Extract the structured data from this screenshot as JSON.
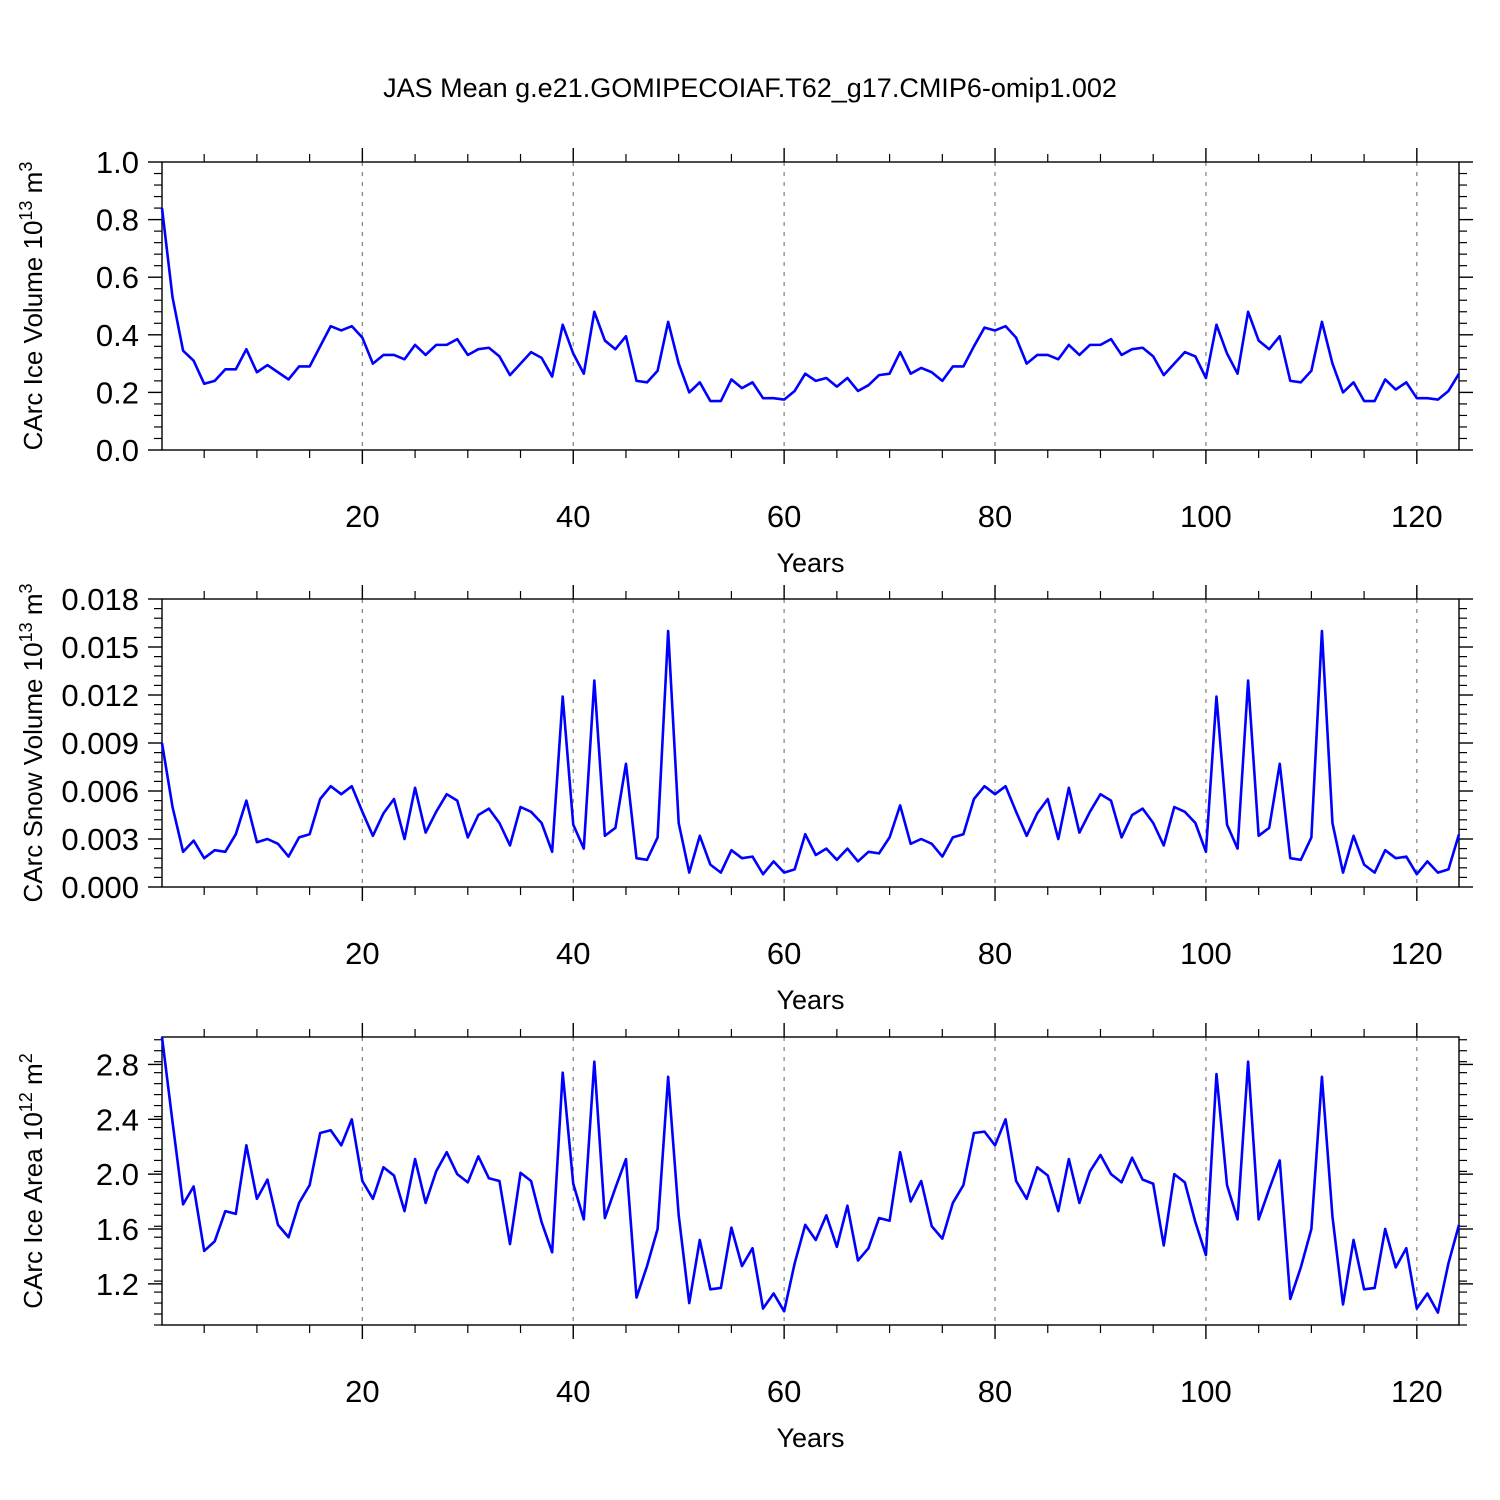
{
  "chart_data": [
    {
      "type": "line",
      "title": "JAS Mean g.e21.GOMIPECOIAF.T62_g17.CMIP6-omip1.002",
      "xlabel": "Years",
      "ylabel": "CArc Ice Volume 10",
      "ylabel_exp": "13",
      "ylabel_unit": " m",
      "ylabel_unit_exp": "3",
      "xlim": [
        1,
        124
      ],
      "ylim": [
        0,
        1.0
      ],
      "xticks": [
        20,
        40,
        60,
        80,
        100,
        120
      ],
      "yticks": [
        0,
        0.2,
        0.4,
        0.6,
        0.8,
        1.0
      ],
      "ytick_labels": [
        "0.0",
        "0.2",
        "0.4",
        "0.6",
        "0.8",
        "1.0"
      ],
      "grid": "dashed vertical at x ticks",
      "line_color": "#0000ff",
      "series": [
        {
          "name": "CArc Ice Volume",
          "values": [
            0.84,
            0.53,
            0.345,
            0.31,
            0.23,
            0.24,
            0.28,
            0.28,
            0.35,
            0.27,
            0.295,
            0.27,
            0.245,
            0.29,
            0.29,
            0.36,
            0.43,
            0.415,
            0.43,
            0.39,
            0.3,
            0.33,
            0.33,
            0.315,
            0.365,
            0.33,
            0.365,
            0.365,
            0.385,
            0.33,
            0.35,
            0.355,
            0.325,
            0.26,
            0.3,
            0.34,
            0.32,
            0.255,
            0.435,
            0.335,
            0.265,
            0.48,
            0.38,
            0.35,
            0.395,
            0.24,
            0.235,
            0.275,
            0.445,
            0.3,
            0.2,
            0.235,
            0.17,
            0.17,
            0.245,
            0.215,
            0.235,
            0.18,
            0.18,
            0.175,
            0.205,
            0.265,
            0.24,
            0.25,
            0.22,
            0.25,
            0.205,
            0.225,
            0.26,
            0.265,
            0.34,
            0.265,
            0.285,
            0.27,
            0.24,
            0.29,
            0.29,
            0.36,
            0.425,
            0.415,
            0.43,
            0.39,
            0.3,
            0.33,
            0.33,
            0.315,
            0.365,
            0.33,
            0.365,
            0.365,
            0.385,
            0.33,
            0.35,
            0.355,
            0.325,
            0.26,
            0.3,
            0.34,
            0.325,
            0.25,
            0.435,
            0.335,
            0.265,
            0.48,
            0.38,
            0.35,
            0.395,
            0.24,
            0.235,
            0.275,
            0.445,
            0.3,
            0.2,
            0.235,
            0.17,
            0.17,
            0.245,
            0.21,
            0.235,
            0.18,
            0.18,
            0.175,
            0.205,
            0.265
          ]
        }
      ]
    },
    {
      "type": "line",
      "title": "",
      "xlabel": "Years",
      "ylabel": "CArc Snow Volume 10",
      "ylabel_exp": "13",
      "ylabel_unit": " m",
      "ylabel_unit_exp": "3",
      "xlim": [
        1,
        124
      ],
      "ylim": [
        0,
        0.018
      ],
      "xticks": [
        20,
        40,
        60,
        80,
        100,
        120
      ],
      "yticks": [
        0,
        0.003,
        0.006,
        0.009,
        0.012,
        0.015,
        0.018
      ],
      "ytick_labels": [
        "0.000",
        "0.003",
        "0.006",
        "0.009",
        "0.012",
        "0.015",
        "0.018"
      ],
      "grid": "dashed vertical at x ticks",
      "line_color": "#0000ff",
      "series": [
        {
          "name": "CArc Snow Volume",
          "values": [
            0.009,
            0.005,
            0.0022,
            0.0029,
            0.0018,
            0.0023,
            0.0022,
            0.0033,
            0.0054,
            0.0028,
            0.003,
            0.0027,
            0.0019,
            0.0031,
            0.0033,
            0.0055,
            0.0063,
            0.0058,
            0.0063,
            0.0047,
            0.0032,
            0.0046,
            0.0055,
            0.003,
            0.0062,
            0.0034,
            0.0047,
            0.0058,
            0.0054,
            0.0031,
            0.0045,
            0.0049,
            0.004,
            0.0026,
            0.005,
            0.0047,
            0.004,
            0.0022,
            0.0119,
            0.0039,
            0.0024,
            0.0129,
            0.0032,
            0.0037,
            0.0077,
            0.0018,
            0.0017,
            0.0031,
            0.016,
            0.004,
            0.0009,
            0.0032,
            0.0014,
            0.0009,
            0.0023,
            0.0018,
            0.0019,
            0.0008,
            0.0016,
            0.0009,
            0.0011,
            0.0033,
            0.002,
            0.0024,
            0.0017,
            0.0024,
            0.0016,
            0.0022,
            0.0021,
            0.0031,
            0.0051,
            0.0027,
            0.003,
            0.0027,
            0.0019,
            0.0031,
            0.0033,
            0.0055,
            0.0063,
            0.0058,
            0.0063,
            0.0047,
            0.0032,
            0.0046,
            0.0055,
            0.003,
            0.0062,
            0.0034,
            0.0047,
            0.0058,
            0.0054,
            0.0031,
            0.0045,
            0.0049,
            0.004,
            0.0026,
            0.005,
            0.0047,
            0.004,
            0.0022,
            0.0119,
            0.0039,
            0.0024,
            0.0129,
            0.0032,
            0.0037,
            0.0077,
            0.0018,
            0.0017,
            0.0031,
            0.016,
            0.004,
            0.0009,
            0.0032,
            0.0014,
            0.0009,
            0.0023,
            0.0018,
            0.0019,
            0.0008,
            0.0016,
            0.0009,
            0.0011,
            0.0033
          ]
        }
      ]
    },
    {
      "type": "line",
      "title": "",
      "xlabel": "Years",
      "ylabel": "CArc Ice Area 10",
      "ylabel_exp": "12",
      "ylabel_unit": " m",
      "ylabel_unit_exp": "2",
      "xlim": [
        1,
        124
      ],
      "ylim": [
        0.9,
        3.0
      ],
      "xticks": [
        20,
        40,
        60,
        80,
        100,
        120
      ],
      "yticks": [
        1.2,
        1.6,
        2.0,
        2.4,
        2.8
      ],
      "ytick_labels": [
        "1.2",
        "1.6",
        "2.0",
        "2.4",
        "2.8"
      ],
      "grid": "dashed vertical at x ticks",
      "line_color": "#0000ff",
      "series": [
        {
          "name": "CArc Ice Area",
          "values": [
            3.0,
            2.38,
            1.78,
            1.91,
            1.44,
            1.51,
            1.73,
            1.71,
            2.21,
            1.82,
            1.96,
            1.63,
            1.54,
            1.79,
            1.92,
            2.3,
            2.32,
            2.21,
            2.4,
            1.95,
            1.82,
            2.05,
            1.99,
            1.73,
            2.11,
            1.79,
            2.02,
            2.16,
            2.0,
            1.94,
            2.13,
            1.97,
            1.95,
            1.49,
            2.01,
            1.95,
            1.65,
            1.43,
            2.74,
            1.93,
            1.67,
            2.82,
            1.68,
            1.9,
            2.11,
            1.1,
            1.33,
            1.6,
            2.71,
            1.7,
            1.06,
            1.52,
            1.16,
            1.17,
            1.61,
            1.33,
            1.46,
            1.02,
            1.13,
            1.0,
            1.35,
            1.63,
            1.52,
            1.7,
            1.47,
            1.77,
            1.37,
            1.46,
            1.68,
            1.66,
            2.16,
            1.8,
            1.95,
            1.62,
            1.53,
            1.79,
            1.92,
            2.3,
            2.31,
            2.21,
            2.4,
            1.95,
            1.82,
            2.05,
            1.99,
            1.73,
            2.11,
            1.79,
            2.02,
            2.14,
            2.0,
            1.94,
            2.12,
            1.96,
            1.93,
            1.48,
            2.0,
            1.94,
            1.65,
            1.41,
            2.73,
            1.92,
            1.67,
            2.82,
            1.67,
            1.89,
            2.1,
            1.09,
            1.32,
            1.6,
            2.71,
            1.69,
            1.05,
            1.52,
            1.16,
            1.17,
            1.6,
            1.32,
            1.46,
            1.02,
            1.13,
            0.99,
            1.35,
            1.63
          ]
        }
      ]
    }
  ]
}
